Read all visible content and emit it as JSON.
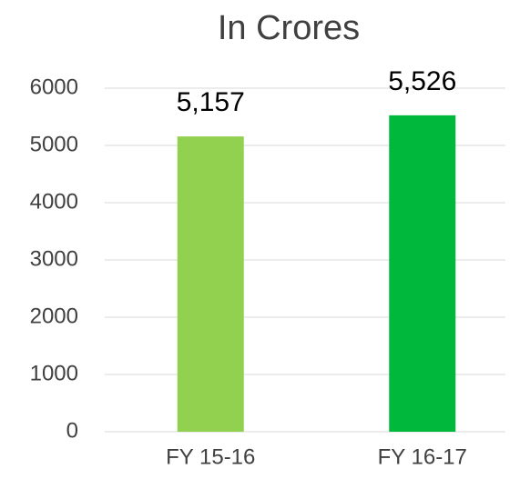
{
  "chart_data": {
    "type": "bar",
    "title": "In Crores",
    "categories": [
      "FY 15-16",
      "FY 16-17"
    ],
    "values": [
      5157,
      5526
    ],
    "value_labels": [
      "5,157",
      "5,526"
    ],
    "colors": [
      "#92d050",
      "#00b83c"
    ],
    "ylim": [
      0,
      6000
    ],
    "yticks": [
      0,
      1000,
      2000,
      3000,
      4000,
      5000,
      6000
    ],
    "grid": true
  }
}
